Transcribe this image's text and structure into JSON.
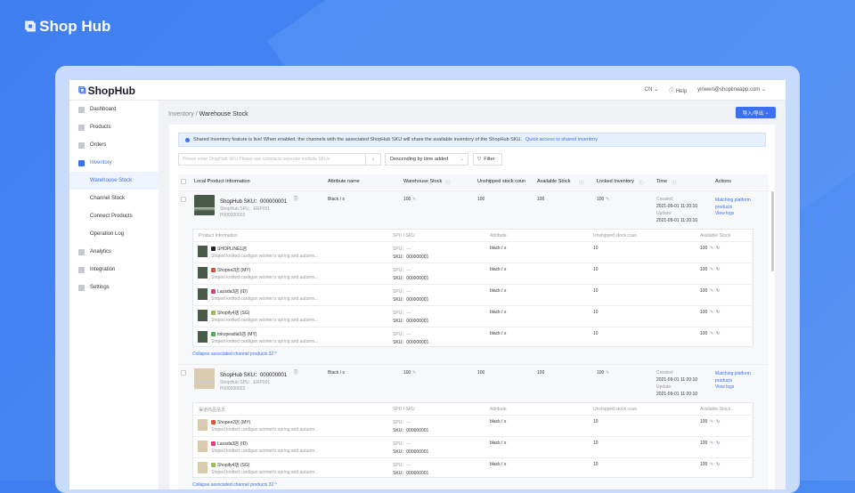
{
  "brand": "Shop Hub",
  "header": {
    "logo": "ShopHub",
    "lang": "CN",
    "help": "Help",
    "user": "yinwen@shoplineapp.com"
  },
  "sidebar": {
    "items": [
      {
        "label": "Dashboard",
        "type": "main"
      },
      {
        "label": "Products",
        "type": "main"
      },
      {
        "label": "Orders",
        "type": "main"
      },
      {
        "label": "Inventory",
        "type": "active"
      },
      {
        "label": "Warehouse Stock",
        "type": "selected"
      },
      {
        "label": "Channel Stock",
        "type": "sub"
      },
      {
        "label": "Connect Products",
        "type": "sub"
      },
      {
        "label": "Operation Log",
        "type": "sub"
      },
      {
        "label": "Analytics",
        "type": "main"
      },
      {
        "label": "Integration",
        "type": "main"
      },
      {
        "label": "Settings",
        "type": "main"
      }
    ]
  },
  "breadcrumb": {
    "parent": "Inventory",
    "sep": " / ",
    "current": "Warehouse Stock"
  },
  "import_export": "导入/导出",
  "notice": {
    "text": "Shared Inventory feature is live! When enabled, the channels with the associated ShopHub SKU will share the available inventory of the ShopHub SKU.",
    "link": "Quick access to shared inventory"
  },
  "search": {
    "placeholder": "Please enter ShopHub SKU.Please use comma to seperate multiple SKUs"
  },
  "sort": {
    "value": "Descending by time added"
  },
  "filter": "Filter",
  "columns": [
    "Local Product Information",
    "Attribute name",
    "Warehouse Stock",
    "Unshipped stock coun",
    "Available Stock",
    "Locked Inventory",
    "Time",
    "Actions"
  ],
  "groups": [
    {
      "sku": "ShopHub SKU：000000001",
      "spu": "ShopHub SPU：ERP001",
      "code": "P000000002",
      "attr": "Black / s",
      "warehouse": "100",
      "unshipped": "100",
      "available": "100",
      "locked": "100",
      "created_label": "Created:",
      "created": "2021-09-01 11:20:10",
      "update_label": "Update:",
      "updated": "2021-09-01 11:20:10",
      "action1": "Matching platform products",
      "action2": "View logs",
      "thumb_color": "#4a5a48",
      "sub_columns": [
        "Product Information",
        "SPU / SKU",
        "Attribute",
        "Unshipped stock coun",
        "Available Stock"
      ],
      "rows": [
        {
          "channel": "SHOPLINE1店",
          "icon_color": "#222",
          "title": "Striped knitted cardigan women's spring and autumn...",
          "spu": "SPU：---",
          "sku": "SKU：000000001",
          "attr": "black / s",
          "unshipped": "10",
          "available": "100"
        },
        {
          "channel": "Shopee2店 (MY)",
          "icon_color": "#ee4d2d",
          "title": "Striped knitted cardigan women's spring and autumn...",
          "spu": "SPU：---",
          "sku": "SKU：000000001",
          "attr": "black / s",
          "unshipped": "10",
          "available": "100"
        },
        {
          "channel": "Lazada3店 (ID)",
          "icon_color": "#f0366f",
          "title": "Striped knitted cardigan women's spring and autumn...",
          "spu": "SPU：---",
          "sku": "SKU：000000001",
          "attr": "black / s",
          "unshipped": "10",
          "available": "100"
        },
        {
          "channel": "Shopify4店 (SG)",
          "icon_color": "#95bf47",
          "title": "Striped knitted cardigan women's spring and autumn...",
          "spu": "SPU：---",
          "sku": "SKU：000000001",
          "attr": "black / s",
          "unshipped": "10",
          "available": "100"
        },
        {
          "channel": "tokopeadia5店 (MY)",
          "icon_color": "#42b549",
          "title": "Striped knitted cardigan women's spring and autumn...",
          "spu": "SPU：---",
          "sku": "SKU：000000001",
          "attr": "black / s",
          "unshipped": "10",
          "available": "100"
        }
      ],
      "collapse": "Collapse associated channel products 32 ^"
    },
    {
      "sku": "ShopHub SKU：000000001",
      "spu": "ShopHub SPU：ERP001",
      "code": "P000000002",
      "attr": "Black / s",
      "warehouse": "100",
      "unshipped": "100",
      "available": "100",
      "locked": "100",
      "created_label": "Created:",
      "created": "2021-09-01 11:20:10",
      "update_label": "Update:",
      "updated": "2021-09-01 11:20:10",
      "action1": "Matching platform products",
      "action2": "View logs",
      "thumb_color": "#d9cbb0",
      "sub_columns": [
        "渠道商品信息",
        "SPU / SKU",
        "Attribute",
        "Unshipped stock coun",
        "Available Stock"
      ],
      "rows": [
        {
          "channel": "Shopee2店 (MY)",
          "icon_color": "#ee4d2d",
          "title": "Striped knitted cardigan women's spring and autumn...",
          "spu": "SPU：---",
          "sku": "SKU：000000001",
          "attr": "black / s",
          "unshipped": "10",
          "available": "100"
        },
        {
          "channel": "Lazada3店 (ID)",
          "icon_color": "#f0366f",
          "title": "Striped knitted cardigan women's spring and autumn...",
          "spu": "SPU：---",
          "sku": "SKU：000000001",
          "attr": "black / s",
          "unshipped": "10",
          "available": "100"
        },
        {
          "channel": "Shopify4店 (SG)",
          "icon_color": "#95bf47",
          "title": "Striped knitted cardigan women's spring and autumn...",
          "spu": "SPU：---",
          "sku": "SKU：000000001",
          "attr": "black / s",
          "unshipped": "10",
          "available": "100"
        }
      ],
      "collapse": "Collapse associated channel products 32 ^"
    }
  ]
}
